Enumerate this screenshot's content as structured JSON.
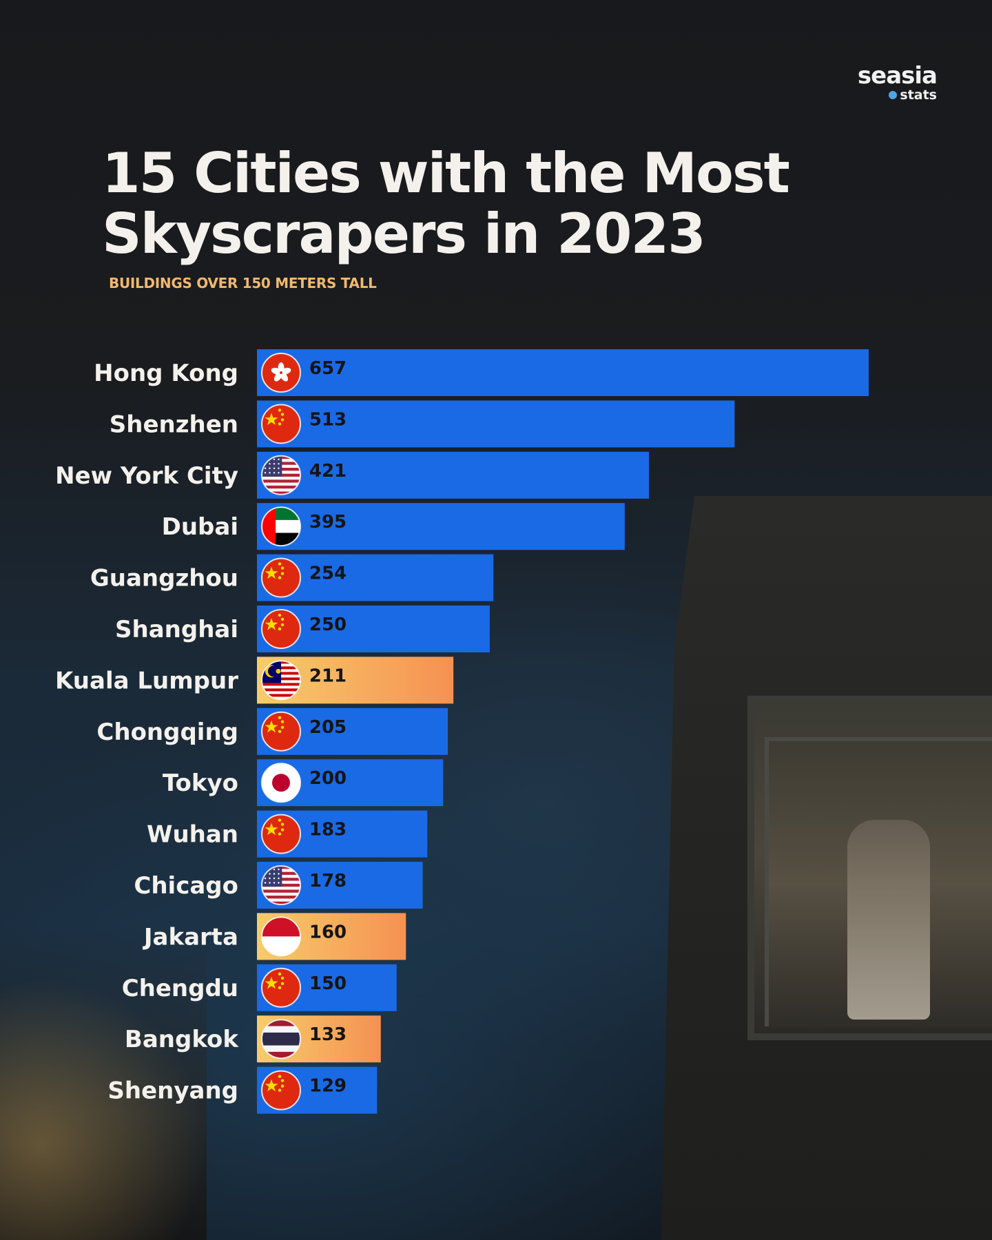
{
  "brand": {
    "name": "seasia",
    "sub": "stats"
  },
  "header": {
    "title_line1": "15 Cities with the Most",
    "title_line2": "Skyscrapers in 2023",
    "subtitle": "BUILDINGS OVER 150 METERS TALL"
  },
  "colors": {
    "bar_default": "#1a6ae6",
    "bar_highlight_start": "#f7cc6a",
    "bar_highlight_end": "#f59152",
    "title": "#f4f1ec",
    "subtitle": "#f2b86e"
  },
  "chart_data": {
    "type": "bar",
    "orientation": "horizontal",
    "title": "15 Cities with the Most Skyscrapers in 2023",
    "subtitle": "BUILDINGS OVER 150 METERS TALL",
    "categories": [
      "Hong Kong",
      "Shenzhen",
      "New York City",
      "Dubai",
      "Guangzhou",
      "Shanghai",
      "Kuala Lumpur",
      "Chongqing",
      "Tokyo",
      "Wuhan",
      "Chicago",
      "Jakarta",
      "Chengdu",
      "Bangkok",
      "Shenyang"
    ],
    "values": [
      657,
      513,
      421,
      395,
      254,
      250,
      211,
      205,
      200,
      183,
      178,
      160,
      150,
      133,
      129
    ],
    "flags": [
      "hong-kong-flag-icon",
      "china-flag-icon",
      "usa-flag-icon",
      "uae-flag-icon",
      "china-flag-icon",
      "china-flag-icon",
      "malaysia-flag-icon",
      "china-flag-icon",
      "japan-flag-icon",
      "china-flag-icon",
      "usa-flag-icon",
      "indonesia-flag-icon",
      "china-flag-icon",
      "thailand-flag-icon",
      "china-flag-icon"
    ],
    "highlighted": [
      "Kuala Lumpur",
      "Jakarta",
      "Bangkok"
    ],
    "xlim": [
      0,
      657
    ],
    "grid": false,
    "legend": "none"
  }
}
